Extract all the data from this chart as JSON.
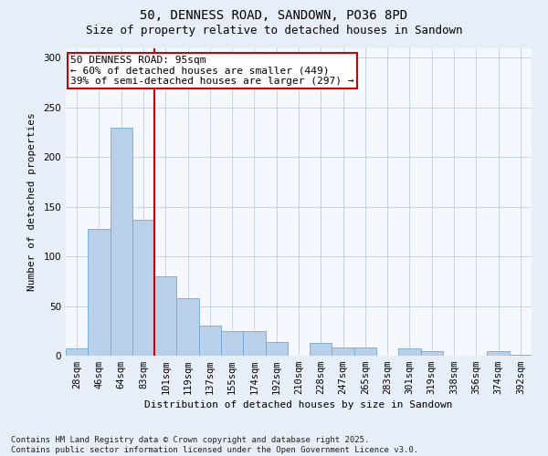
{
  "title": "50, DENNESS ROAD, SANDOWN, PO36 8PD",
  "subtitle": "Size of property relative to detached houses in Sandown",
  "xlabel": "Distribution of detached houses by size in Sandown",
  "ylabel": "Number of detached properties",
  "categories": [
    "28sqm",
    "46sqm",
    "64sqm",
    "83sqm",
    "101sqm",
    "119sqm",
    "137sqm",
    "155sqm",
    "174sqm",
    "192sqm",
    "210sqm",
    "228sqm",
    "247sqm",
    "265sqm",
    "283sqm",
    "301sqm",
    "319sqm",
    "338sqm",
    "356sqm",
    "374sqm",
    "392sqm"
  ],
  "values": [
    7,
    128,
    230,
    137,
    80,
    58,
    30,
    25,
    25,
    14,
    0,
    13,
    8,
    8,
    0,
    7,
    5,
    0,
    0,
    5,
    1
  ],
  "bar_color": "#b8d0ea",
  "bar_edge_color": "#6aaad4",
  "vline_x": 4.0,
  "vline_color": "#cc0000",
  "annotation_text": "50 DENNESS ROAD: 95sqm\n← 60% of detached houses are smaller (449)\n39% of semi-detached houses are larger (297) →",
  "annotation_box_color": "#cc0000",
  "ylim": [
    0,
    310
  ],
  "yticks": [
    0,
    50,
    100,
    150,
    200,
    250,
    300
  ],
  "footer": "Contains HM Land Registry data © Crown copyright and database right 2025.\nContains public sector information licensed under the Open Government Licence v3.0.",
  "background_color": "#e8eef8",
  "plot_background": "#f5f8ff",
  "grid_color": "#c0cce0",
  "title_fontsize": 10,
  "subtitle_fontsize": 9,
  "axis_label_fontsize": 8,
  "tick_fontsize": 7.5,
  "annotation_fontsize": 8,
  "footer_fontsize": 6.5
}
